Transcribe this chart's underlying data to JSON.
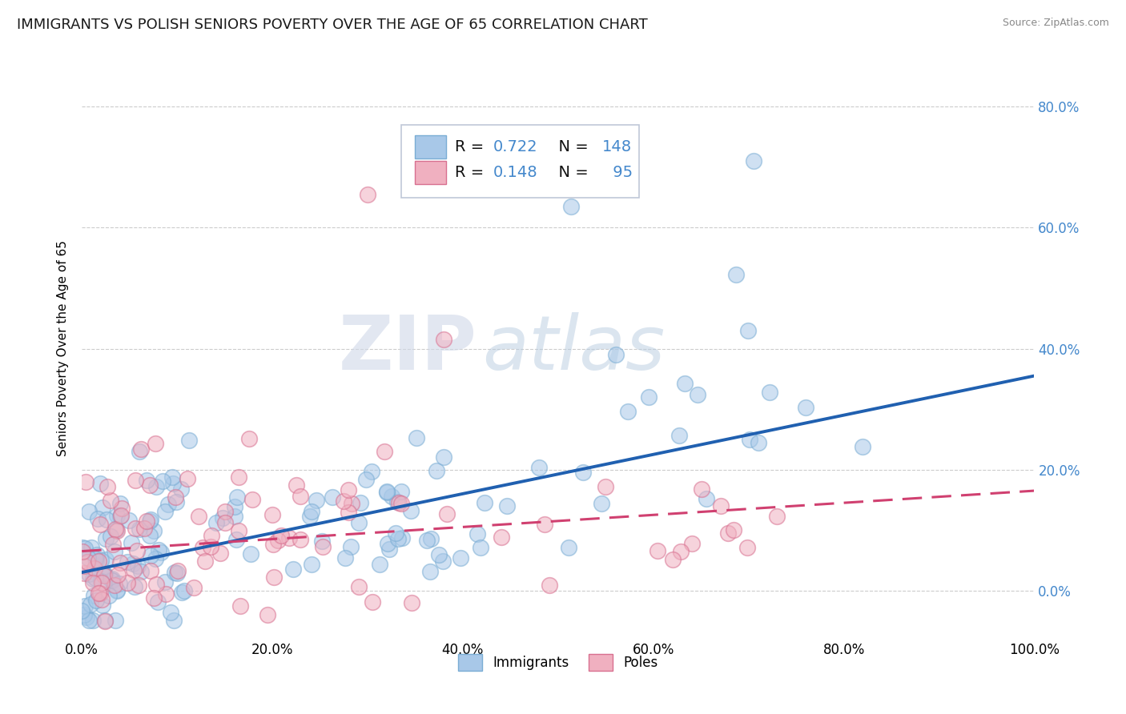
{
  "title": "IMMIGRANTS VS POLISH SENIORS POVERTY OVER THE AGE OF 65 CORRELATION CHART",
  "source": "Source: ZipAtlas.com",
  "ylabel": "Seniors Poverty Over the Age of 65",
  "xlim": [
    0,
    1.0
  ],
  "ylim": [
    -0.08,
    0.88
  ],
  "xticks": [
    0.0,
    0.2,
    0.4,
    0.6,
    0.8,
    1.0
  ],
  "xticklabels": [
    "0.0%",
    "20.0%",
    "40.0%",
    "60.0%",
    "80.0%",
    "100.0%"
  ],
  "yticks": [
    0.0,
    0.2,
    0.4,
    0.6,
    0.8
  ],
  "yticklabels_left": [
    "",
    "",
    "",
    "",
    ""
  ],
  "yticklabels_right": [
    "0.0%",
    "20.0%",
    "40.0%",
    "60.0%",
    "80.0%"
  ],
  "immigrants_fill": "#a8c8e8",
  "immigrants_edge": "#7aadd4",
  "poles_fill": "#f0b0c0",
  "poles_edge": "#d87090",
  "trend_imm_color": "#2060b0",
  "trend_pol_color": "#d04070",
  "r_immigrants": 0.722,
  "n_immigrants": 148,
  "r_poles": 0.148,
  "n_poles": 95,
  "background_color": "#ffffff",
  "grid_color": "#cccccc",
  "watermark_zip": "ZIP",
  "watermark_atlas": "atlas",
  "legend_text_color": "#4488cc",
  "title_fontsize": 13,
  "label_fontsize": 11,
  "tick_fontsize": 12,
  "imm_trend_start_y": 0.03,
  "imm_trend_end_y": 0.355,
  "pol_trend_start_y": 0.065,
  "pol_trend_end_y": 0.165
}
